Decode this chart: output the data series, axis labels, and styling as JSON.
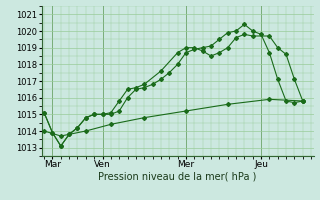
{
  "background_color": "#cce8e0",
  "grid_color": "#99cc99",
  "line_color": "#1a6b1a",
  "marker_color": "#1a6b1a",
  "xlabel": "Pression niveau de la mer( hPa )",
  "ylim": [
    1012.5,
    1021.5
  ],
  "yticks": [
    1013,
    1014,
    1015,
    1016,
    1017,
    1018,
    1019,
    1020,
    1021
  ],
  "xlim": [
    -0.3,
    32.3
  ],
  "day_labels": [
    "Mar",
    "Ven",
    "Mer",
    "Jeu"
  ],
  "day_positions": [
    1,
    7,
    17,
    26
  ],
  "vline_positions": [
    1,
    7,
    17,
    26
  ],
  "line1_x": [
    0,
    1,
    2,
    3,
    4,
    5,
    6,
    7,
    8,
    9,
    10,
    11,
    12,
    13,
    14,
    15,
    16,
    17,
    18,
    19,
    20,
    21,
    22,
    23,
    24,
    25,
    26,
    27,
    28,
    29,
    30,
    31
  ],
  "line1_y": [
    1015.1,
    1013.9,
    1013.1,
    1013.8,
    1014.2,
    1014.8,
    1015.0,
    1015.0,
    1015.0,
    1015.2,
    1016.0,
    1016.5,
    1016.6,
    1016.8,
    1017.1,
    1017.5,
    1018.0,
    1018.7,
    1018.9,
    1019.0,
    1019.1,
    1019.5,
    1019.9,
    1020.0,
    1020.4,
    1020.0,
    1019.8,
    1018.7,
    1017.1,
    1015.8,
    1015.7,
    1015.8
  ],
  "line2_x": [
    0,
    1,
    2,
    3,
    4,
    5,
    6,
    7,
    8,
    9,
    10,
    11,
    12,
    14,
    16,
    17,
    18,
    19,
    20,
    21,
    22,
    23,
    24,
    25,
    27,
    28,
    29,
    30,
    31
  ],
  "line2_y": [
    1015.1,
    1013.9,
    1013.1,
    1013.8,
    1014.2,
    1014.8,
    1015.0,
    1015.0,
    1015.1,
    1015.8,
    1016.5,
    1016.6,
    1016.8,
    1017.6,
    1018.7,
    1019.0,
    1019.0,
    1018.8,
    1018.5,
    1018.7,
    1019.0,
    1019.6,
    1019.8,
    1019.7,
    1019.7,
    1019.0,
    1018.6,
    1017.1,
    1015.8
  ],
  "line3_x": [
    0,
    2,
    5,
    8,
    12,
    17,
    22,
    27,
    31
  ],
  "line3_y": [
    1014.0,
    1013.7,
    1014.0,
    1014.4,
    1014.8,
    1015.2,
    1015.6,
    1015.9,
    1015.8
  ],
  "jeu_vline_x": 26
}
